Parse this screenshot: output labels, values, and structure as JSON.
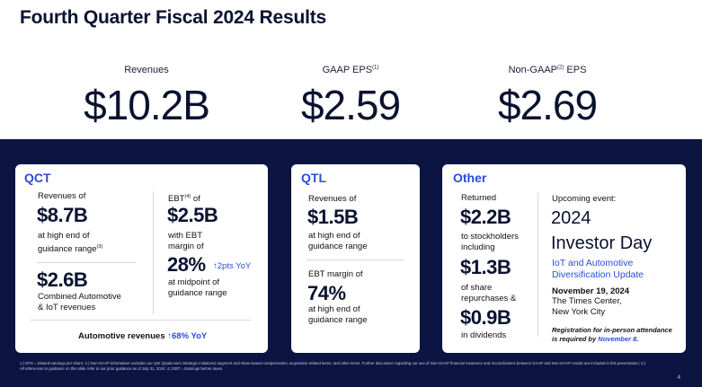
{
  "title": "Fourth Quarter Fiscal 2024 Results",
  "kpis": [
    {
      "label": "Revenues",
      "sup": "",
      "label_suffix": "",
      "value": "$10.2B"
    },
    {
      "label": "GAAP EPS",
      "sup": "(1)",
      "label_suffix": "",
      "value": "$2.59"
    },
    {
      "label": "Non-GAAP",
      "sup": "(2)",
      "label_suffix": " EPS",
      "value": "$2.69"
    }
  ],
  "qct": {
    "title": "QCT",
    "rev_label": "Revenues of",
    "rev_value": "$8.7B",
    "rev_note1": "at high end of",
    "rev_note2": "guidance range",
    "rev_note_sup": "(3)",
    "iot_value": "$2.6B",
    "iot_label1": "Combined Automotive",
    "iot_label2": "& IoT revenues",
    "ebt_label": "EBT",
    "ebt_sup": "(4)",
    "ebt_label_suffix": " of",
    "ebt_value": "$2.5B",
    "ebt_note1": "with EBT",
    "ebt_note2": "margin of",
    "margin_value": "28%",
    "margin_change": "↑2pts YoY",
    "margin_note1": "at midpoint of",
    "margin_note2": "guidance range",
    "auto_label": "Automotive revenues",
    "auto_change": "↑68% YoY"
  },
  "qtl": {
    "title": "QTL",
    "rev_label": "Revenues of",
    "rev_value": "$1.5B",
    "rev_note1": "at high end of",
    "rev_note2": "guidance range",
    "ebt_label": "EBT margin of",
    "ebt_value": "74%",
    "ebt_note1": "at high end of",
    "ebt_note2": "guidance range"
  },
  "other": {
    "title": "Other",
    "returned_label": "Returned",
    "returned_value": "$2.2B",
    "to_label1": "to stockholders",
    "to_label2": "including",
    "repurch_value": "$1.3B",
    "repurch_label1": "of share",
    "repurch_label2": "repurchases &",
    "div_value": "$0.9B",
    "div_label": "in dividends",
    "event_label": "Upcoming event:",
    "event_year": "2024",
    "event_name": "Investor Day",
    "event_sub1": "IoT and Automotive",
    "event_sub2": "Diversification Update",
    "event_date": "November 19, 2024",
    "event_venue1": "The Times Center,",
    "event_venue2": "New York City",
    "reg_line1": "Registration for in-person attendance",
    "reg_line2_prefix": "is required by ",
    "reg_line2_link": "November 8",
    "reg_line2_suffix": "."
  },
  "footnote": "1.) EPS = Diluted earnings per share; 2.) Non-GAAP information excludes our QSI (Qualcomm Strategic Initiatives) segment and share-based compensation, acquisition-related items, and other items. Further discussion regarding our use of Non-GAAP financial measures and reconciliations between GAAP and Non-GAAP results are included in this presentation; 3.) All references to guidance on this slide refer to our prior guidance as of July 31, 2024; 4.) EBT = Earnings before taxes.",
  "page_number": "4",
  "colors": {
    "navy": "#0c1442",
    "accent_blue": "#2a4dd8"
  }
}
